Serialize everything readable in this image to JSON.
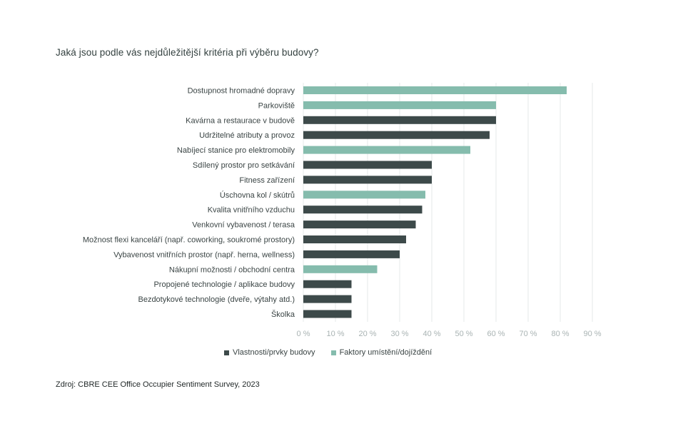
{
  "chart_data": {
    "type": "bar",
    "orientation": "horizontal",
    "title": "Jaká jsou podle vás nejdůležitější kritéria při výběru budovy?",
    "categories": [
      "Dostupnost hromadné dopravy",
      "Parkoviště",
      "Kavárna a restaurace v budově",
      "Udržitelné atributy a provoz",
      "Nabíjecí stanice pro elektromobily",
      "Sdílený prostor pro setkávání",
      "Fitness zařízení",
      "Úschovna kol / skútrů",
      "Kvalita vnitřního vzduchu",
      "Venkovní vybavenost / terasa",
      "Možnost flexi kanceláří (např. coworking, soukromé prostory)",
      "Vybavenost vnitřních prostor (např. herna, wellness)",
      "Nákupní možnosti / obchodní centra",
      "Propojené technologie / aplikace budovy",
      "Bezdotykové technologie (dveře, výtahy atd.)",
      "Školka"
    ],
    "values": [
      82,
      60,
      60,
      58,
      52,
      40,
      40,
      38,
      37,
      35,
      32,
      30,
      23,
      15,
      15,
      15
    ],
    "groups": [
      "location",
      "location",
      "building",
      "building",
      "location",
      "building",
      "building",
      "location",
      "building",
      "building",
      "building",
      "building",
      "location",
      "building",
      "building",
      "building"
    ],
    "series": [
      {
        "key": "building",
        "name": "Vlastnosti/prvky budovy",
        "color": "#3d4a4a"
      },
      {
        "key": "location",
        "name": "Faktory umístění/dojíždění",
        "color": "#85bcad"
      }
    ],
    "xlim": [
      0,
      90
    ],
    "xticks": [
      "0 %",
      "10 %",
      "20 %",
      "30 %",
      "40 %",
      "50 %",
      "60 %",
      "70 %",
      "80 %",
      "90 %"
    ],
    "grid": true,
    "legend_position": "bottom"
  },
  "source": "Zdroj: CBRE CEE Office Occupier Sentiment  Survey, 2023"
}
